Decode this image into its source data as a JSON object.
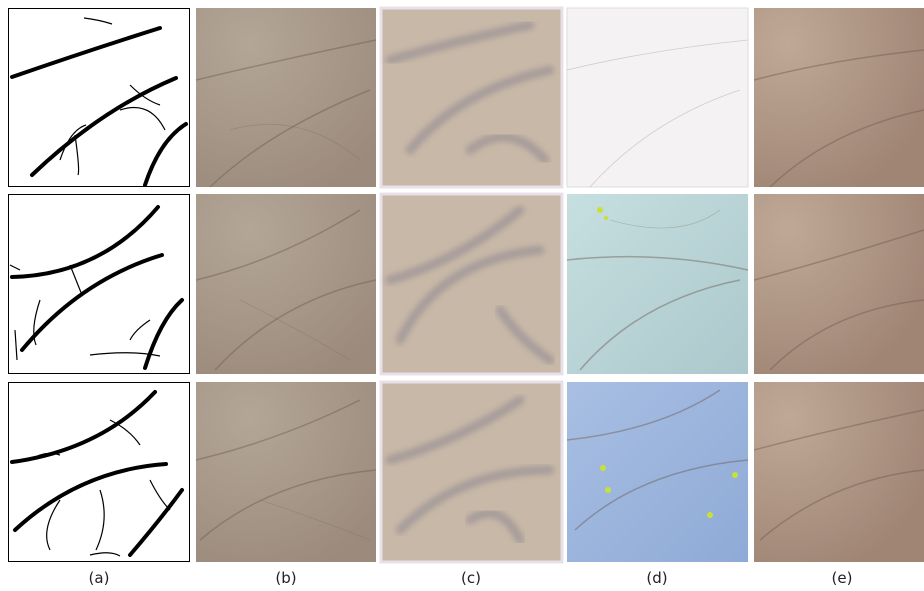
{
  "labels": [
    "(a)",
    "(b)",
    "(c)",
    "(d)",
    "(e)"
  ]
}
